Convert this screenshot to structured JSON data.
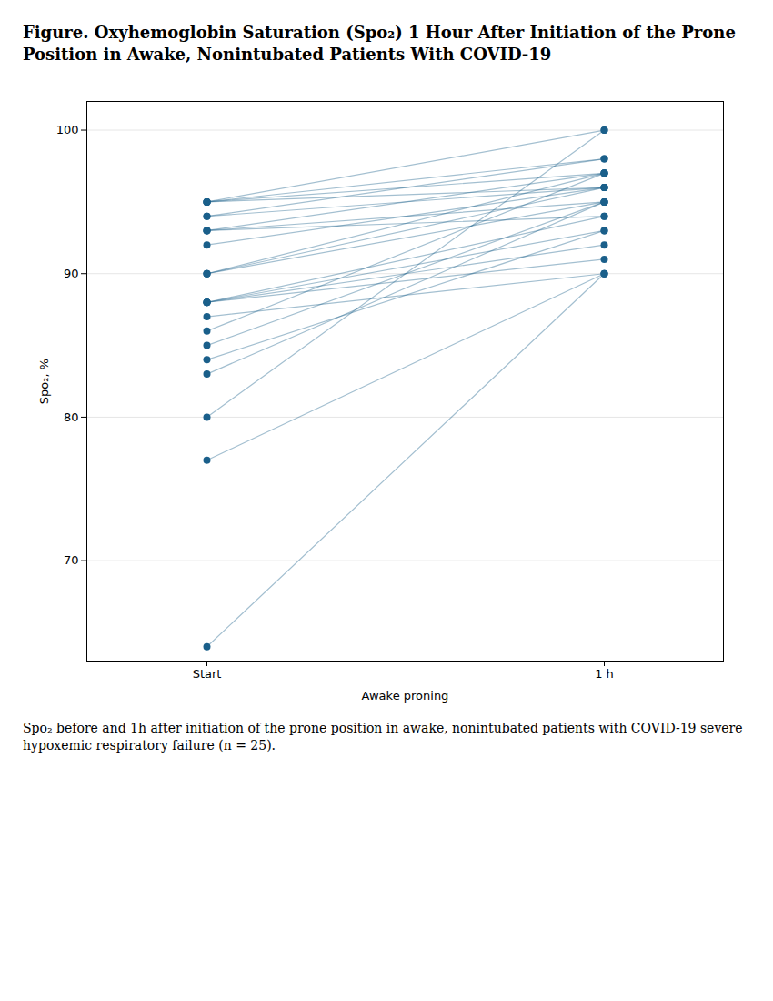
{
  "chart_data": {
    "type": "line",
    "title": "Figure. Oxyhemoglobin Saturation (Spo₂) 1 Hour After Initiation of the Prone Position in Awake, Nonintubated Patients With COVID-19",
    "caption": "Spo₂ before and 1h after initiation of the prone position in awake, nonintubated patients with COVID-19 severe hypoxemic respiratory failure (n = 25).",
    "x_label": "Awake proning",
    "y_label": "Spo₂, %",
    "categories": [
      "Start",
      "1 h"
    ],
    "color": "#1a5f8a",
    "marker": "o",
    "grid": true,
    "ylim": [
      63,
      102
    ],
    "yticks": [
      70,
      80,
      90,
      100
    ],
    "series": [
      {
        "values": [
          64,
          90
        ]
      },
      {
        "values": [
          77,
          90
        ]
      },
      {
        "values": [
          80,
          100
        ]
      },
      {
        "values": [
          83,
          95
        ]
      },
      {
        "values": [
          84,
          93
        ]
      },
      {
        "values": [
          85,
          95
        ]
      },
      {
        "values": [
          86,
          97
        ]
      },
      {
        "values": [
          87,
          90
        ]
      },
      {
        "values": [
          88,
          91
        ]
      },
      {
        "values": [
          88,
          92
        ]
      },
      {
        "values": [
          88,
          93
        ]
      },
      {
        "values": [
          88,
          94
        ]
      },
      {
        "values": [
          90,
          95
        ]
      },
      {
        "values": [
          90,
          96
        ]
      },
      {
        "values": [
          90,
          97
        ]
      },
      {
        "values": [
          92,
          96
        ]
      },
      {
        "values": [
          93,
          94
        ]
      },
      {
        "values": [
          93,
          95
        ]
      },
      {
        "values": [
          93,
          97
        ]
      },
      {
        "values": [
          94,
          96
        ]
      },
      {
        "values": [
          94,
          98
        ]
      },
      {
        "values": [
          95,
          96
        ]
      },
      {
        "values": [
          95,
          97
        ]
      },
      {
        "values": [
          95,
          98
        ]
      },
      {
        "values": [
          95,
          100
        ]
      }
    ]
  }
}
